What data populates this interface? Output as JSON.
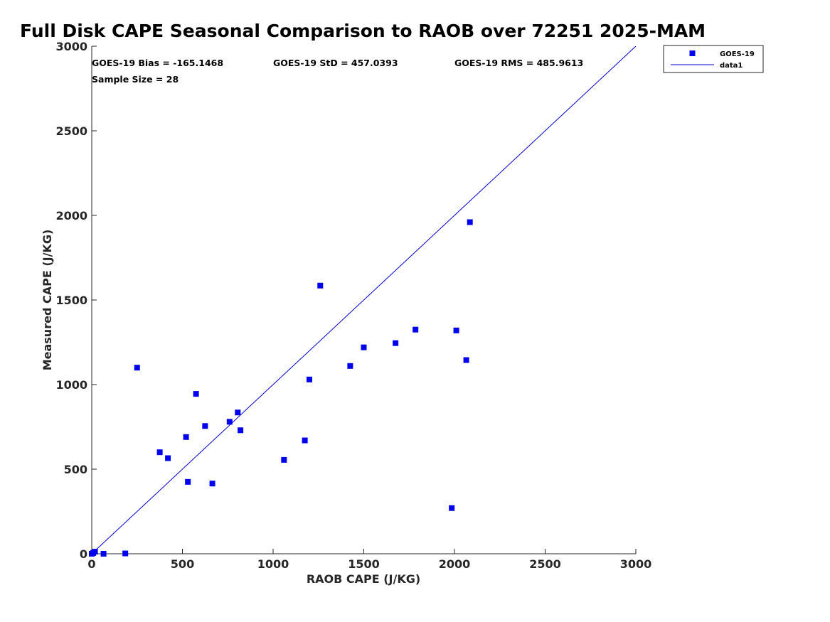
{
  "chart_data": {
    "type": "scatter",
    "title": "Full Disk CAPE Seasonal Comparison to RAOB over 72251 2025-MAM",
    "xlabel": "RAOB CAPE (J/KG)",
    "ylabel": "Measured CAPE (J/KG)",
    "xlim": [
      0,
      3000
    ],
    "ylim": [
      0,
      3000
    ],
    "xticks": [
      0,
      500,
      1000,
      1500,
      2000,
      2500,
      3000
    ],
    "yticks": [
      0,
      500,
      1000,
      1500,
      2000,
      2500,
      3000
    ],
    "grid": false,
    "legend_position": "top-right",
    "colors": {
      "series": "#0000ee",
      "line": "#0000cc"
    },
    "stats": {
      "bias": "GOES-19 Bias = -165.1468",
      "std": "GOES-19 StD = 457.0393",
      "rms": "GOES-19 RMS = 485.9613",
      "sample_size": "Sample Size = 28"
    },
    "series": [
      {
        "name": "GOES-19",
        "marker": "square",
        "points": [
          [
            0,
            0
          ],
          [
            8,
            5
          ],
          [
            18,
            12
          ],
          [
            65,
            0
          ],
          [
            185,
            2
          ],
          [
            250,
            1100
          ],
          [
            375,
            600
          ],
          [
            420,
            565
          ],
          [
            520,
            690
          ],
          [
            530,
            425
          ],
          [
            575,
            945
          ],
          [
            625,
            755
          ],
          [
            665,
            415
          ],
          [
            760,
            780
          ],
          [
            805,
            835
          ],
          [
            820,
            730
          ],
          [
            1060,
            555
          ],
          [
            1175,
            670
          ],
          [
            1200,
            1030
          ],
          [
            1260,
            1585
          ],
          [
            1425,
            1110
          ],
          [
            1500,
            1220
          ],
          [
            1675,
            1245
          ],
          [
            1785,
            1325
          ],
          [
            1985,
            270
          ],
          [
            2010,
            1320
          ],
          [
            2065,
            1145
          ],
          [
            2085,
            1960
          ]
        ]
      },
      {
        "name": "data1",
        "type": "line",
        "points": [
          [
            0,
            0
          ],
          [
            3000,
            3000
          ]
        ]
      }
    ]
  }
}
